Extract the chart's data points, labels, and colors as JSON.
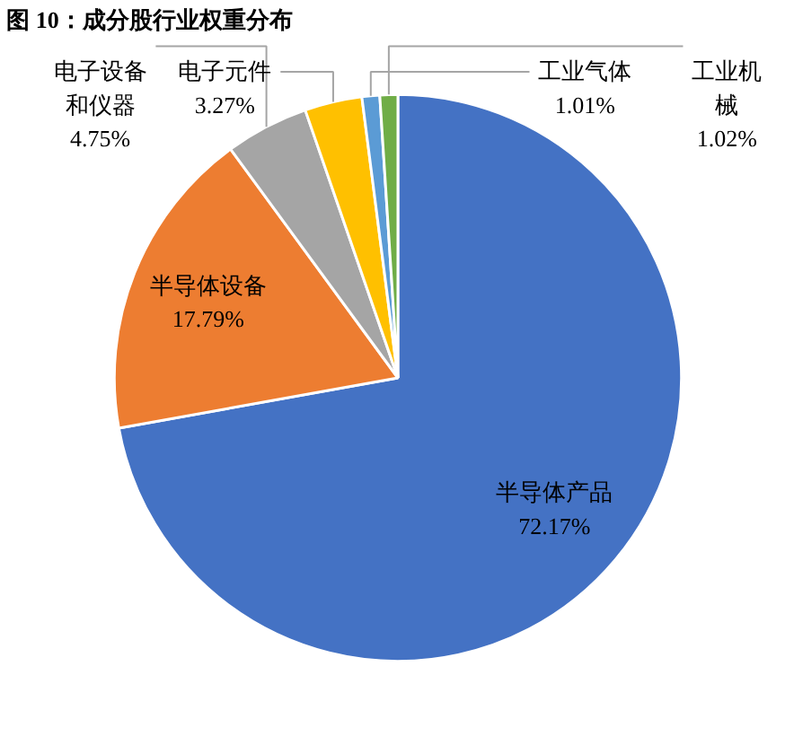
{
  "chart_data": {
    "type": "pie",
    "title": "图 10：成分股行业权重分布",
    "categories": [
      "半导体产品",
      "半导体设备",
      "电子设备和仪器",
      "电子元件",
      "工业气体",
      "工业机械"
    ],
    "values": [
      72.17,
      17.79,
      4.75,
      3.27,
      1.01,
      1.02
    ],
    "colors": [
      "#4472c4",
      "#ed7d31",
      "#a5a5a5",
      "#ffc000",
      "#5b9bd5",
      "#70ad47"
    ],
    "value_labels": [
      "72.17%",
      "17.79%",
      "4.75%",
      "3.27%",
      "1.01%",
      "1.02%"
    ]
  }
}
